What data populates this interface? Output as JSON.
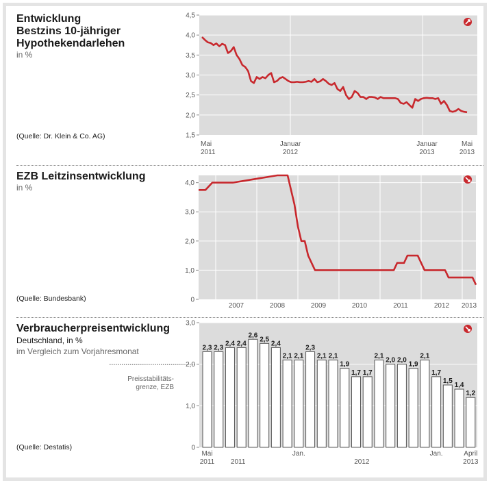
{
  "panels": {
    "p1": {
      "title_line1": "Entwicklung",
      "title_line2": "Bestzins 10-jähriger",
      "title_line3": "Hypothekendarlehen",
      "unit": "in %",
      "source": "(Quelle: Dr. Klein & Co. AG)"
    },
    "p2": {
      "title": "EZB Leitzinsentwicklung",
      "unit": "in %",
      "source": "(Quelle: Bundesbank)"
    },
    "p3": {
      "title": "Verbraucherpreisentwicklung",
      "subtitle": "Deutschland, in %",
      "subtitle2": "im Vergleich zum Vorjahresmonat",
      "source": "(Quelle: Destatis)",
      "annotation_line1": "Preisstabilitäts-",
      "annotation_line2": "grenze, EZB"
    }
  },
  "colors": {
    "line": "#c8282d",
    "plot_bg": "#dcdcdc",
    "bar_fill": "#ffffff",
    "bar_stroke": "#555555",
    "tick_text": "#555555",
    "icon": "#c8282d"
  },
  "icons": {
    "p1": "arrow-up-right-icon",
    "p2": "arrow-down-right-icon",
    "p3": "arrow-down-right-icon"
  },
  "chart_data": [
    {
      "type": "line",
      "title": "Entwicklung Bestzins 10-jähriger Hypothekendarlehen",
      "ylabel": "in %",
      "ylim": [
        1.5,
        4.5
      ],
      "yticks": [
        "1,5",
        "2,0",
        "2,5",
        "3,0",
        "3,5",
        "4,0",
        "4,5"
      ],
      "x_ticks": [
        {
          "line1": "Mai",
          "line2": "2011"
        },
        {
          "line1": "Januar",
          "line2": "2012"
        },
        {
          "line1": "Januar",
          "line2": "2013"
        },
        {
          "line1": "Mai",
          "line2": "2013"
        }
      ],
      "x_range": [
        "2011-05",
        "2013-05"
      ],
      "series": [
        {
          "values": [
            3.95,
            3.88,
            3.82,
            3.8,
            3.75,
            3.79,
            3.72,
            3.78,
            3.75,
            3.55,
            3.6,
            3.7,
            3.5,
            3.4,
            3.25,
            3.2,
            3.1,
            2.85,
            2.8,
            2.95,
            2.9,
            2.95,
            2.92,
            3.0,
            3.05,
            2.82,
            2.85,
            2.92,
            2.95,
            2.9,
            2.85,
            2.82,
            2.82,
            2.83,
            2.82,
            2.82,
            2.83,
            2.85,
            2.83,
            2.9,
            2.82,
            2.84,
            2.9,
            2.85,
            2.78,
            2.75,
            2.8,
            2.65,
            2.6,
            2.7,
            2.5,
            2.4,
            2.45,
            2.6,
            2.55,
            2.45,
            2.45,
            2.4,
            2.45,
            2.45,
            2.44,
            2.4,
            2.45,
            2.42,
            2.42,
            2.42,
            2.42,
            2.42,
            2.4,
            2.3,
            2.28,
            2.32,
            2.25,
            2.18,
            2.4,
            2.35,
            2.4,
            2.42,
            2.43,
            2.42,
            2.42,
            2.4,
            2.42,
            2.28,
            2.35,
            2.25,
            2.1,
            2.08,
            2.1,
            2.15,
            2.1,
            2.08,
            2.07
          ]
        }
      ]
    },
    {
      "type": "line",
      "title": "EZB Leitzinsentwicklung",
      "ylabel": "in %",
      "ylim": [
        0,
        4.25
      ],
      "yticks": [
        "0",
        "1,0",
        "2,0",
        "3,0",
        "4,0"
      ],
      "x_labels": [
        "2007",
        "2008",
        "2009",
        "2010",
        "2011",
        "2012",
        "2013"
      ],
      "x_range": [
        "2006-08",
        "2013-05"
      ],
      "series": [
        {
          "points": [
            [
              "2006-08",
              3.75
            ],
            [
              "2006-10",
              3.75
            ],
            [
              "2006-12",
              4.0
            ],
            [
              "2007-03",
              4.0
            ],
            [
              "2007-06",
              4.0
            ],
            [
              "2008-07",
              4.25
            ],
            [
              "2008-10",
              4.25
            ],
            [
              "2008-11",
              3.75
            ],
            [
              "2008-12",
              3.25
            ],
            [
              "2009-01",
              2.5
            ],
            [
              "2009-02",
              2.0
            ],
            [
              "2009-03",
              2.0
            ],
            [
              "2009-04",
              1.5
            ],
            [
              "2009-05",
              1.25
            ],
            [
              "2009-06",
              1.0
            ],
            [
              "2011-05",
              1.0
            ],
            [
              "2011-06",
              1.25
            ],
            [
              "2011-08",
              1.25
            ],
            [
              "2011-09",
              1.5
            ],
            [
              "2011-12",
              1.5
            ],
            [
              "2012-02",
              1.0
            ],
            [
              "2012-08",
              1.0
            ],
            [
              "2012-09",
              0.75
            ],
            [
              "2013-04",
              0.75
            ],
            [
              "2013-05",
              0.5
            ]
          ]
        }
      ]
    },
    {
      "type": "bar",
      "title": "Verbraucherpreisentwicklung",
      "subtitle": "Deutschland, in % im Vergleich zum Vorjahresmonat",
      "ylim": [
        0,
        3.0
      ],
      "yticks": [
        "0",
        "1,0",
        "2,0",
        "3,0"
      ],
      "threshold": 2.0,
      "values": [
        2.3,
        2.3,
        2.4,
        2.4,
        2.6,
        2.5,
        2.4,
        2.1,
        2.1,
        2.3,
        2.1,
        2.1,
        1.9,
        1.7,
        1.7,
        2.1,
        2.0,
        2.0,
        1.9,
        2.1,
        1.7,
        1.5,
        1.4,
        1.2
      ],
      "labels": [
        "2,3",
        "2,3",
        "2,4",
        "2,4",
        "2,6",
        "2,5",
        "2,4",
        "2,1",
        "2,1",
        "2,3",
        "2,1",
        "2,1",
        "1,9",
        "1,7",
        "1,7",
        "2,1",
        "2,0",
        "2,0",
        "1,9",
        "2,1",
        "1,7",
        "1,5",
        "1,4",
        "1,2"
      ],
      "x_ticks": [
        {
          "text": "Mai",
          "bar": 0
        },
        {
          "text": "Jan.",
          "bar": 8
        },
        {
          "text": "Jan.",
          "bar": 20
        },
        {
          "text": "April",
          "bar": 23
        }
      ],
      "year_labels": [
        {
          "text": "2011",
          "bar": 0
        },
        {
          "text": "2011",
          "bar": 2.7
        },
        {
          "text": "2012",
          "bar": 13.5
        },
        {
          "text": "2013",
          "bar": 23
        }
      ]
    }
  ]
}
